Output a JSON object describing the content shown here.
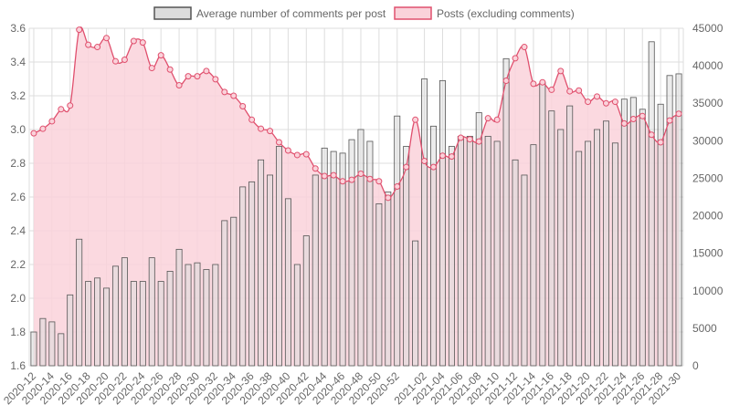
{
  "chart_data": {
    "type": "bar",
    "legend": {
      "placement": "top"
    },
    "grid": true,
    "colors": {
      "bar_fill": "#dcdcdc",
      "bar_stroke": "#555555",
      "line": "#e0506e",
      "area": "#fad2da",
      "grid": "#dddddd",
      "text": "#666666"
    },
    "left_axis": {
      "min": 1.6,
      "max": 3.6,
      "ticks": [
        "1.6",
        "1.8",
        "2.0",
        "2.2",
        "2.4",
        "2.6",
        "2.8",
        "3.0",
        "3.2",
        "3.4",
        "3.6"
      ]
    },
    "right_axis": {
      "min": 0,
      "max": 45000,
      "ticks": [
        "0",
        "5000",
        "10000",
        "15000",
        "20000",
        "25000",
        "30000",
        "35000",
        "40000",
        "45000"
      ]
    },
    "x_tick_labels": [
      {
        "i": 0,
        "label": "2020-12"
      },
      {
        "i": 2,
        "label": "2020-14"
      },
      {
        "i": 4,
        "label": "2020-16"
      },
      {
        "i": 6,
        "label": "2020-18"
      },
      {
        "i": 8,
        "label": "2020-20"
      },
      {
        "i": 10,
        "label": "2020-22"
      },
      {
        "i": 12,
        "label": "2020-24"
      },
      {
        "i": 14,
        "label": "2020-26"
      },
      {
        "i": 16,
        "label": "2020-28"
      },
      {
        "i": 18,
        "label": "2020-30"
      },
      {
        "i": 20,
        "label": "2020-32"
      },
      {
        "i": 22,
        "label": "2020-34"
      },
      {
        "i": 24,
        "label": "2020-36"
      },
      {
        "i": 26,
        "label": "2020-38"
      },
      {
        "i": 28,
        "label": "2020-40"
      },
      {
        "i": 30,
        "label": "2020-42"
      },
      {
        "i": 32,
        "label": "2020-44"
      },
      {
        "i": 34,
        "label": "2020-46"
      },
      {
        "i": 36,
        "label": "2020-48"
      },
      {
        "i": 38,
        "label": "2020-50"
      },
      {
        "i": 40,
        "label": "2020-52"
      },
      {
        "i": 43,
        "label": "2021-02"
      },
      {
        "i": 45,
        "label": "2021-04"
      },
      {
        "i": 47,
        "label": "2021-06"
      },
      {
        "i": 49,
        "label": "2021-08"
      },
      {
        "i": 51,
        "label": "2021-10"
      },
      {
        "i": 53,
        "label": "2021-12"
      },
      {
        "i": 55,
        "label": "2021-14"
      },
      {
        "i": 57,
        "label": "2021-16"
      },
      {
        "i": 59,
        "label": "2021-18"
      },
      {
        "i": 61,
        "label": "2021-20"
      },
      {
        "i": 63,
        "label": "2021-22"
      },
      {
        "i": 65,
        "label": "2021-24"
      },
      {
        "i": 67,
        "label": "2021-26"
      },
      {
        "i": 69,
        "label": "2021-28"
      },
      {
        "i": 71,
        "label": "2021-30"
      }
    ],
    "series": [
      {
        "name": "Average number of comments per post",
        "kind": "bar",
        "axis": "left",
        "values": [
          1.8,
          1.88,
          1.86,
          1.79,
          2.02,
          2.35,
          2.1,
          2.12,
          2.06,
          2.19,
          2.24,
          2.1,
          2.1,
          2.24,
          2.1,
          2.16,
          2.29,
          2.2,
          2.21,
          2.17,
          2.2,
          2.46,
          2.48,
          2.66,
          2.69,
          2.82,
          2.73,
          2.9,
          2.59,
          2.2,
          2.37,
          2.73,
          2.89,
          2.87,
          2.86,
          2.94,
          3.0,
          2.93,
          2.56,
          2.63,
          3.08,
          2.9,
          2.34,
          3.3,
          3.02,
          3.29,
          2.9,
          2.96,
          2.96,
          3.1,
          2.96,
          2.93,
          3.42,
          2.82,
          2.73,
          2.91,
          3.28,
          3.11,
          3.0,
          3.14,
          2.87,
          2.93,
          3.0,
          3.05,
          2.92,
          3.18,
          3.19,
          3.12,
          3.52,
          3.15,
          3.32,
          3.33
        ]
      },
      {
        "name": "Posts (excluding comments)",
        "kind": "area-line",
        "axis": "right",
        "values": [
          31000,
          31600,
          32600,
          34200,
          34700,
          44800,
          42800,
          42500,
          43700,
          40600,
          40800,
          43300,
          43100,
          39700,
          41400,
          39500,
          37400,
          38600,
          38600,
          39300,
          38200,
          36500,
          36000,
          34600,
          32800,
          31600,
          31300,
          29800,
          28700,
          28100,
          28200,
          26300,
          25300,
          25400,
          24600,
          24800,
          25600,
          24900,
          24600,
          22400,
          23900,
          26500,
          32800,
          27300,
          26500,
          28000,
          27900,
          30400,
          30200,
          29900,
          33000,
          32800,
          38000,
          41000,
          42500,
          37600,
          37800,
          36800,
          39300,
          36600,
          36700,
          35200,
          35900,
          35000,
          35200,
          32300,
          32900,
          33300,
          30800,
          29800,
          32700,
          33600
        ]
      }
    ]
  }
}
